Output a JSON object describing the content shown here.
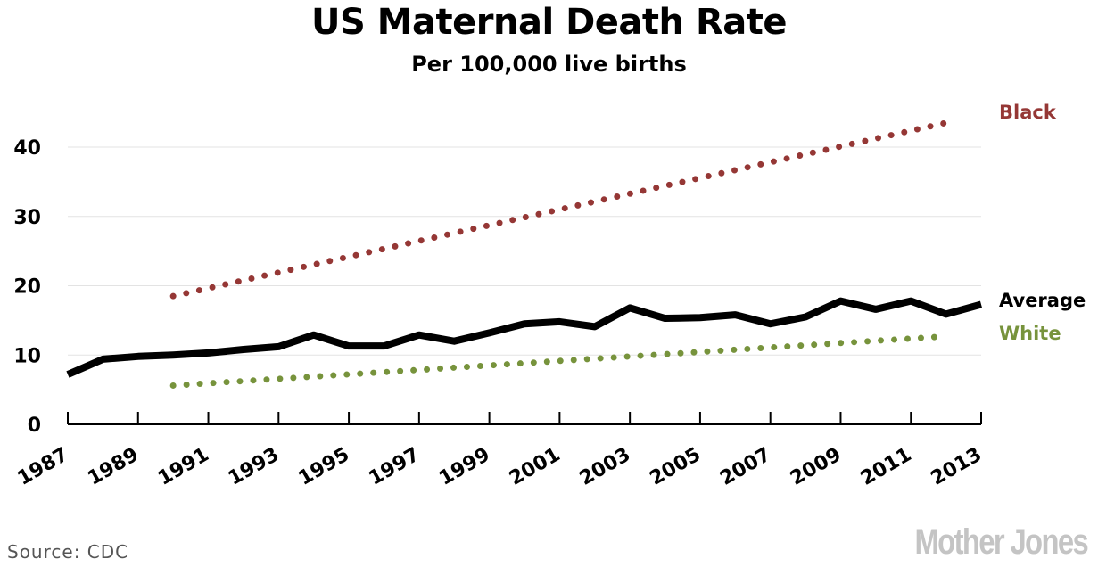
{
  "chart_data": {
    "type": "line",
    "title": "US Maternal Death Rate",
    "subtitle": "Per 100,000 live births",
    "xlabel": "",
    "ylabel": "",
    "xlim": [
      1987,
      2013
    ],
    "ylim": [
      0,
      45
    ],
    "yticks": [
      0,
      10,
      20,
      30,
      40
    ],
    "xticks": [
      1987,
      1989,
      1991,
      1993,
      1995,
      1997,
      1999,
      2001,
      2003,
      2005,
      2007,
      2009,
      2011,
      2013
    ],
    "grid": true,
    "series": [
      {
        "name": "Black",
        "color": "#953735",
        "style": "dotted",
        "x": [
          1990,
          2012
        ],
        "y": [
          18.5,
          43.5
        ]
      },
      {
        "name": "Average",
        "color": "#000000",
        "style": "solid",
        "x": [
          1987,
          1988,
          1989,
          1990,
          1991,
          1992,
          1993,
          1994,
          1995,
          1996,
          1997,
          1998,
          1999,
          2000,
          2001,
          2002,
          2003,
          2004,
          2005,
          2006,
          2007,
          2008,
          2009,
          2010,
          2011,
          2012,
          2013
        ],
        "y": [
          7.2,
          9.4,
          9.8,
          10.0,
          10.3,
          10.8,
          11.2,
          12.9,
          11.3,
          11.3,
          12.9,
          12.0,
          13.2,
          14.5,
          14.8,
          14.1,
          16.8,
          15.3,
          15.4,
          15.8,
          14.5,
          15.5,
          17.8,
          16.6,
          17.8,
          15.9,
          17.3
        ]
      },
      {
        "name": "White",
        "color": "#77933c",
        "style": "dotted",
        "x": [
          1990,
          2012
        ],
        "y": [
          5.6,
          12.7
        ]
      }
    ],
    "source": "Source: CDC"
  },
  "branding": {
    "logo_text": "Mother Jones"
  }
}
